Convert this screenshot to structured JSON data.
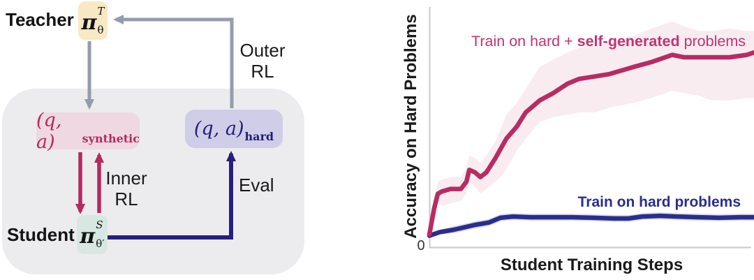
{
  "diagram": {
    "region_color": "#ECECEE",
    "teacher": {
      "label": "Teacher",
      "pi": "π",
      "sup": "T",
      "sub": "θ",
      "box_color": "#F8E9C4"
    },
    "student": {
      "label": "Student",
      "pi": "π",
      "sup": "S",
      "sub": "θ′",
      "box_color": "#D7E8E2"
    },
    "synthetic_node": {
      "math": "(q, a)",
      "subscript": "synthetic",
      "box_color": "#EFD8E2",
      "text_color": "#B42A60"
    },
    "hard_node": {
      "math": "(q, a)",
      "subscript": "hard",
      "box_color": "#CFCDE7",
      "text_color": "#221E78"
    },
    "labels": {
      "outer_rl_line1": "Outer",
      "outer_rl_line2": "RL",
      "inner_rl_line1": "Inner",
      "inner_rl_line2": "RL",
      "eval": "Eval"
    },
    "colors": {
      "gray_arrow": "#959CAC",
      "magenta_arrow": "#B42A60",
      "navy_arrow": "#281F7D"
    }
  },
  "chart_data": {
    "type": "line",
    "title": "",
    "xlabel": "Student Training Steps",
    "ylabel": "Accuracy on Hard Problems",
    "origin_tick_label": "0",
    "xlim": [
      0,
      100
    ],
    "ylim": [
      0,
      1
    ],
    "grid": false,
    "legend_position": "inline-annotations",
    "series": [
      {
        "name": "Train on hard + self-generated problems",
        "label_parts": {
          "prefix": "Train on hard + ",
          "bold": "self-generated",
          "suffix": " problems"
        },
        "color": "#B82B63",
        "band_color": "#F8ECF1",
        "line_name": "self-generated-series-line",
        "band_name": "self-generated-confidence-band",
        "x": [
          0,
          1.5,
          2.6,
          3.9,
          6.5,
          9.7,
          11.4,
          12.3,
          14,
          15.7,
          17.6,
          20.4,
          23.7,
          26.9,
          29.7,
          34,
          38.1,
          42.6,
          46.2,
          51,
          55.5,
          63,
          68.4,
          74.8,
          78.5,
          82.8,
          87.1,
          92.5,
          97.8,
          100
        ],
        "y": [
          0.05,
          0.16,
          0.22,
          0.23,
          0.24,
          0.24,
          0.27,
          0.32,
          0.31,
          0.29,
          0.31,
          0.37,
          0.45,
          0.5,
          0.56,
          0.61,
          0.64,
          0.68,
          0.7,
          0.71,
          0.72,
          0.75,
          0.77,
          0.8,
          0.79,
          0.79,
          0.79,
          0.79,
          0.8,
          0.81
        ],
        "band_upper": [
          0.06,
          0.2,
          0.27,
          0.28,
          0.29,
          0.29,
          0.33,
          0.38,
          0.37,
          0.35,
          0.38,
          0.44,
          0.55,
          0.6,
          0.66,
          0.75,
          0.78,
          0.81,
          0.83,
          0.84,
          0.85,
          0.88,
          0.91,
          0.94,
          0.92,
          0.9,
          0.9,
          0.91,
          0.9,
          0.9
        ],
        "band_lower": [
          0.04,
          0.13,
          0.18,
          0.17,
          0.18,
          0.19,
          0.22,
          0.27,
          0.25,
          0.22,
          0.24,
          0.27,
          0.32,
          0.4,
          0.45,
          0.52,
          0.54,
          0.55,
          0.56,
          0.56,
          0.58,
          0.6,
          0.62,
          0.65,
          0.64,
          0.63,
          0.61,
          0.61,
          0.62,
          0.62
        ]
      },
      {
        "name": "Train on hard problems",
        "color": "#2B2D8E",
        "band_color": "#DDDEF0",
        "line_name": "hard-only-series-line",
        "band_name": "hard-only-confidence-band",
        "x": [
          0,
          3.2,
          7.5,
          10.8,
          14,
          18.3,
          21.9,
          25.8,
          31.2,
          37.6,
          44.1,
          50.5,
          57,
          61.3,
          65.6,
          71,
          76.3,
          82.8,
          89.2,
          95.7,
          100
        ],
        "y": [
          0.045,
          0.06,
          0.07,
          0.08,
          0.09,
          0.1,
          0.12,
          0.125,
          0.122,
          0.122,
          0.122,
          0.12,
          0.117,
          0.117,
          0.125,
          0.128,
          0.125,
          0.122,
          0.12,
          0.122,
          0.122
        ],
        "band_upper": [
          0.05,
          0.07,
          0.085,
          0.095,
          0.105,
          0.115,
          0.135,
          0.14,
          0.137,
          0.137,
          0.137,
          0.135,
          0.132,
          0.132,
          0.14,
          0.143,
          0.14,
          0.137,
          0.135,
          0.137,
          0.137
        ],
        "band_lower": [
          0.04,
          0.05,
          0.055,
          0.065,
          0.075,
          0.085,
          0.105,
          0.11,
          0.107,
          0.107,
          0.107,
          0.105,
          0.102,
          0.102,
          0.11,
          0.113,
          0.11,
          0.107,
          0.105,
          0.107,
          0.107
        ]
      }
    ]
  }
}
